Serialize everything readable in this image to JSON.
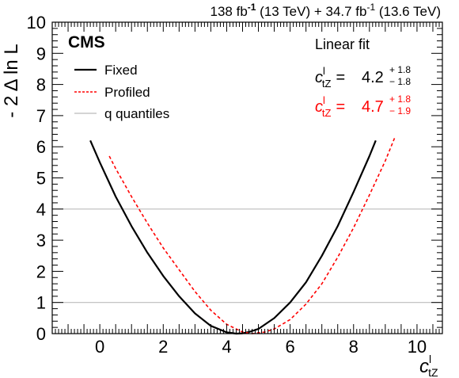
{
  "chart_data": {
    "type": "line",
    "lumi_text": {
      "part1": "138 fb",
      "exp1": "-1",
      "part2": " (13 TeV) + 34.7 fb",
      "exp2": "-1",
      "part3": " (13.6 TeV)"
    },
    "experiment": "CMS",
    "xlabel": {
      "main": "c",
      "sup": "l",
      "sub": "tZ"
    },
    "ylabel": "- 2 Δ ln L",
    "xlim": [
      -1.5,
      10.8
    ],
    "ylim": [
      0,
      10
    ],
    "x_ticks": [
      0,
      2,
      4,
      6,
      8,
      10
    ],
    "y_ticks": [
      0,
      1,
      2,
      3,
      4,
      5,
      6,
      7,
      8,
      9,
      10
    ],
    "quantile_lines": [
      1,
      4
    ],
    "fit_title": "Linear fit",
    "fits": [
      {
        "name": "Fixed",
        "central": "4.2",
        "up": "+ 1.8",
        "down": "− 1.8",
        "color": "#000000"
      },
      {
        "name": "Profiled",
        "central": "4.7",
        "up": "+ 1.8",
        "down": "− 1.9",
        "color": "#ff0000"
      }
    ],
    "fit_symbol": {
      "main": "c",
      "sup": "l",
      "sub": "tZ",
      "eq": "="
    },
    "legend": [
      {
        "label": "Fixed",
        "style": "solid",
        "color": "#000000"
      },
      {
        "label": "Profiled",
        "style": "dashed",
        "color": "#ff0000"
      },
      {
        "label": "q quantiles",
        "style": "solid",
        "color": "#bbbbbb"
      }
    ],
    "series": [
      {
        "name": "Fixed",
        "color": "#000000",
        "style": "solid",
        "x": [
          -0.3,
          0.0,
          0.5,
          1.0,
          1.5,
          2.0,
          2.5,
          3.0,
          3.5,
          4.0,
          4.3,
          4.5,
          4.7,
          5.0,
          5.5,
          6.0,
          6.5,
          7.0,
          7.5,
          8.0,
          8.5,
          8.7
        ],
        "y": [
          6.2,
          5.5,
          4.4,
          3.45,
          2.6,
          1.85,
          1.2,
          0.65,
          0.25,
          0.04,
          0.0,
          0.01,
          0.05,
          0.15,
          0.5,
          1.0,
          1.65,
          2.5,
          3.45,
          4.55,
          5.7,
          6.2
        ]
      },
      {
        "name": "Profiled",
        "color": "#ff0000",
        "style": "dashed",
        "x": [
          0.3,
          0.5,
          1.0,
          1.5,
          2.0,
          2.5,
          3.0,
          3.5,
          4.0,
          4.5,
          4.8,
          5.2,
          5.5,
          6.0,
          6.5,
          7.0,
          7.5,
          8.0,
          8.5,
          9.0,
          9.3
        ],
        "y": [
          5.7,
          5.3,
          4.4,
          3.55,
          2.75,
          2.05,
          1.35,
          0.75,
          0.3,
          0.05,
          0.0,
          0.05,
          0.15,
          0.45,
          0.95,
          1.6,
          2.45,
          3.4,
          4.45,
          5.55,
          6.3
        ]
      }
    ]
  }
}
